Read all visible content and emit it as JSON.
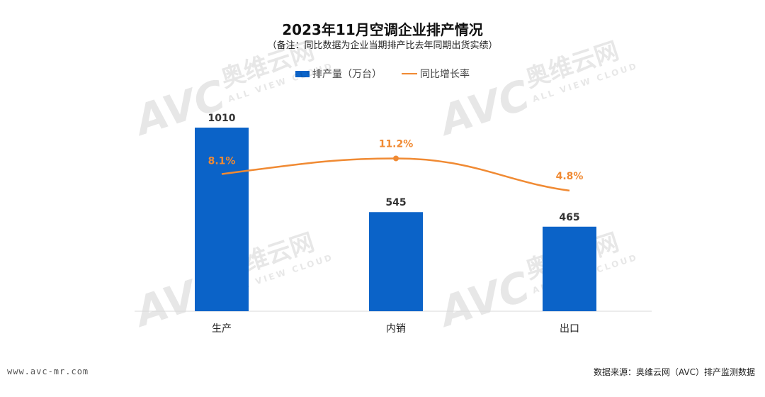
{
  "chart_data": {
    "type": "bar",
    "title": "2023年11月空调企业排产情况",
    "subtitle": "（备注：同比数据为企业当期排产比去年同期出货实绩）",
    "categories": [
      "生产",
      "内销",
      "出口"
    ],
    "series": [
      {
        "name": "排产量（万台）",
        "type": "bar",
        "values": [
          1010,
          545,
          465
        ],
        "labels": [
          "1010",
          "545",
          "465"
        ],
        "color": "#0B63C8"
      },
      {
        "name": "同比增长率",
        "type": "line",
        "values": [
          8.1,
          11.2,
          4.8
        ],
        "labels": [
          "8.1%",
          "11.2%",
          "4.8%"
        ],
        "color": "#F08A33"
      }
    ],
    "legend_position": "top-center",
    "grid": false
  },
  "watermark": {
    "brand_cn": "奥维云网",
    "brand_en": "ALL VIEW CLOUD",
    "logo": "AVC"
  },
  "footer": {
    "website": "www.avc-mr.com",
    "source": "数据来源：奥维云网（AVC）排产监测数据"
  }
}
